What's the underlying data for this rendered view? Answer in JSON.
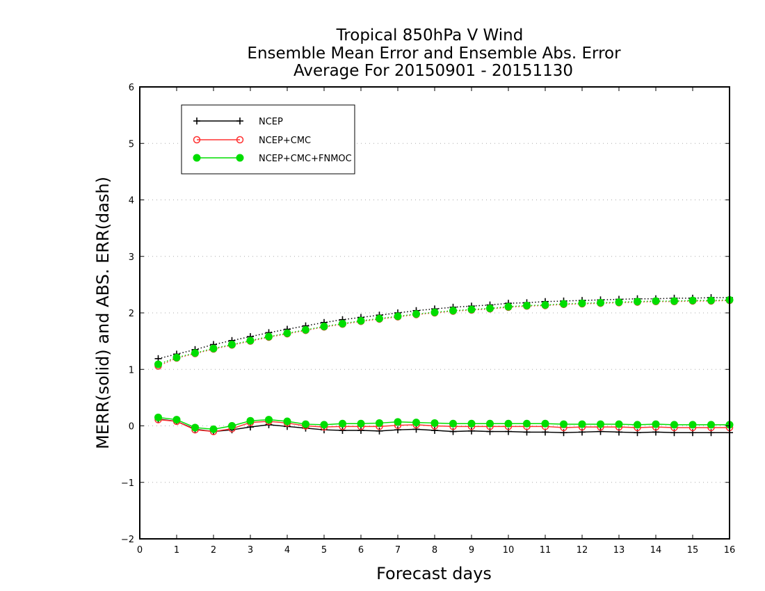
{
  "title_lines": [
    "Tropical 850hPa V Wind",
    "Ensemble Mean Error and Ensemble Abs. Error",
    "Average For 20150901 - 20151130"
  ],
  "chart_data": {
    "type": "line",
    "xlabel": "Forecast days",
    "ylabel": "MERR(solid) and ABS. ERR(dash)",
    "xlim": [
      0,
      16
    ],
    "ylim": [
      -2,
      6
    ],
    "xticks": [
      0,
      1,
      2,
      3,
      4,
      5,
      6,
      7,
      8,
      9,
      10,
      11,
      12,
      13,
      14,
      15,
      16
    ],
    "yticks": [
      -2,
      -1,
      0,
      1,
      2,
      3,
      4,
      5,
      6
    ],
    "grid": "horizontal dotted",
    "legend_position": "top-left",
    "x": [
      0.5,
      1,
      1.5,
      2,
      2.5,
      3,
      3.5,
      4,
      4.5,
      5,
      5.5,
      6,
      6.5,
      7,
      7.5,
      8,
      8.5,
      9,
      9.5,
      10,
      10.5,
      11,
      11.5,
      12,
      12.5,
      13,
      13.5,
      14,
      14.5,
      15,
      15.5,
      16
    ],
    "series": [
      {
        "name": "NCEP",
        "color": "#000000",
        "marker": "plus",
        "merr": [
          0.12,
          0.08,
          -0.06,
          -0.1,
          -0.07,
          -0.02,
          0.02,
          -0.01,
          -0.04,
          -0.07,
          -0.08,
          -0.08,
          -0.09,
          -0.07,
          -0.06,
          -0.08,
          -0.1,
          -0.09,
          -0.1,
          -0.1,
          -0.11,
          -0.11,
          -0.12,
          -0.11,
          -0.1,
          -0.11,
          -0.12,
          -0.11,
          -0.12,
          -0.12,
          -0.12,
          -0.12
        ],
        "abs_err": [
          1.19,
          1.27,
          1.35,
          1.44,
          1.51,
          1.58,
          1.65,
          1.71,
          1.77,
          1.83,
          1.88,
          1.92,
          1.96,
          2.0,
          2.04,
          2.07,
          2.1,
          2.12,
          2.14,
          2.17,
          2.18,
          2.2,
          2.21,
          2.22,
          2.23,
          2.24,
          2.25,
          2.25,
          2.26,
          2.26,
          2.27,
          2.27
        ]
      },
      {
        "name": "NCEP+CMC",
        "color": "#ff3030",
        "marker": "open-circle",
        "merr": [
          0.11,
          0.08,
          -0.07,
          -0.1,
          -0.05,
          0.06,
          0.08,
          0.05,
          0.0,
          -0.02,
          -0.01,
          -0.01,
          -0.01,
          0.01,
          0.02,
          0.0,
          -0.01,
          -0.01,
          -0.01,
          -0.01,
          -0.01,
          -0.01,
          -0.03,
          -0.02,
          -0.02,
          -0.02,
          -0.03,
          -0.02,
          -0.03,
          -0.03,
          -0.03,
          -0.03
        ],
        "abs_err": [
          1.06,
          1.2,
          1.28,
          1.36,
          1.43,
          1.5,
          1.57,
          1.63,
          1.69,
          1.75,
          1.8,
          1.85,
          1.89,
          1.93,
          1.97,
          2.0,
          2.03,
          2.05,
          2.07,
          2.1,
          2.12,
          2.13,
          2.15,
          2.16,
          2.17,
          2.18,
          2.19,
          2.2,
          2.2,
          2.21,
          2.21,
          2.22
        ]
      },
      {
        "name": "NCEP+CMC+FNMOC",
        "color": "#00dd00",
        "marker": "filled-circle",
        "merr": [
          0.15,
          0.11,
          -0.03,
          -0.06,
          0.0,
          0.09,
          0.11,
          0.08,
          0.03,
          0.02,
          0.04,
          0.04,
          0.05,
          0.07,
          0.06,
          0.05,
          0.04,
          0.04,
          0.04,
          0.04,
          0.04,
          0.04,
          0.03,
          0.03,
          0.03,
          0.03,
          0.02,
          0.03,
          0.02,
          0.02,
          0.02,
          0.02
        ],
        "abs_err": [
          1.09,
          1.21,
          1.29,
          1.37,
          1.44,
          1.51,
          1.58,
          1.64,
          1.7,
          1.76,
          1.81,
          1.86,
          1.9,
          1.94,
          1.98,
          2.01,
          2.04,
          2.06,
          2.08,
          2.11,
          2.13,
          2.14,
          2.16,
          2.17,
          2.18,
          2.19,
          2.2,
          2.21,
          2.21,
          2.22,
          2.22,
          2.23
        ]
      }
    ]
  }
}
